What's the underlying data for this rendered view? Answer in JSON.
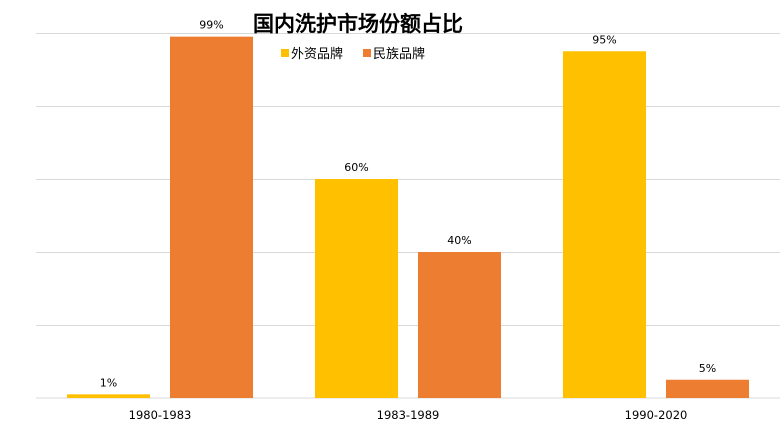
{
  "chart_data": {
    "type": "bar",
    "title": "国内洗护市场份额占比",
    "categories": [
      "1980-1983",
      "1983-1989",
      "1990-2020"
    ],
    "series": [
      {
        "name": "外资品牌",
        "values": [
          1,
          60,
          95
        ],
        "labels": [
          "1%",
          "60%",
          "95%"
        ],
        "color": "#FFC000"
      },
      {
        "name": "民族品牌",
        "values": [
          99,
          40,
          5
        ],
        "labels": [
          "99%",
          "40%",
          "5%"
        ],
        "color": "#ED7D31"
      }
    ],
    "xlabel": "",
    "ylabel": "",
    "ylim": [
      0,
      100
    ],
    "grid": true,
    "legend_position": "top"
  }
}
